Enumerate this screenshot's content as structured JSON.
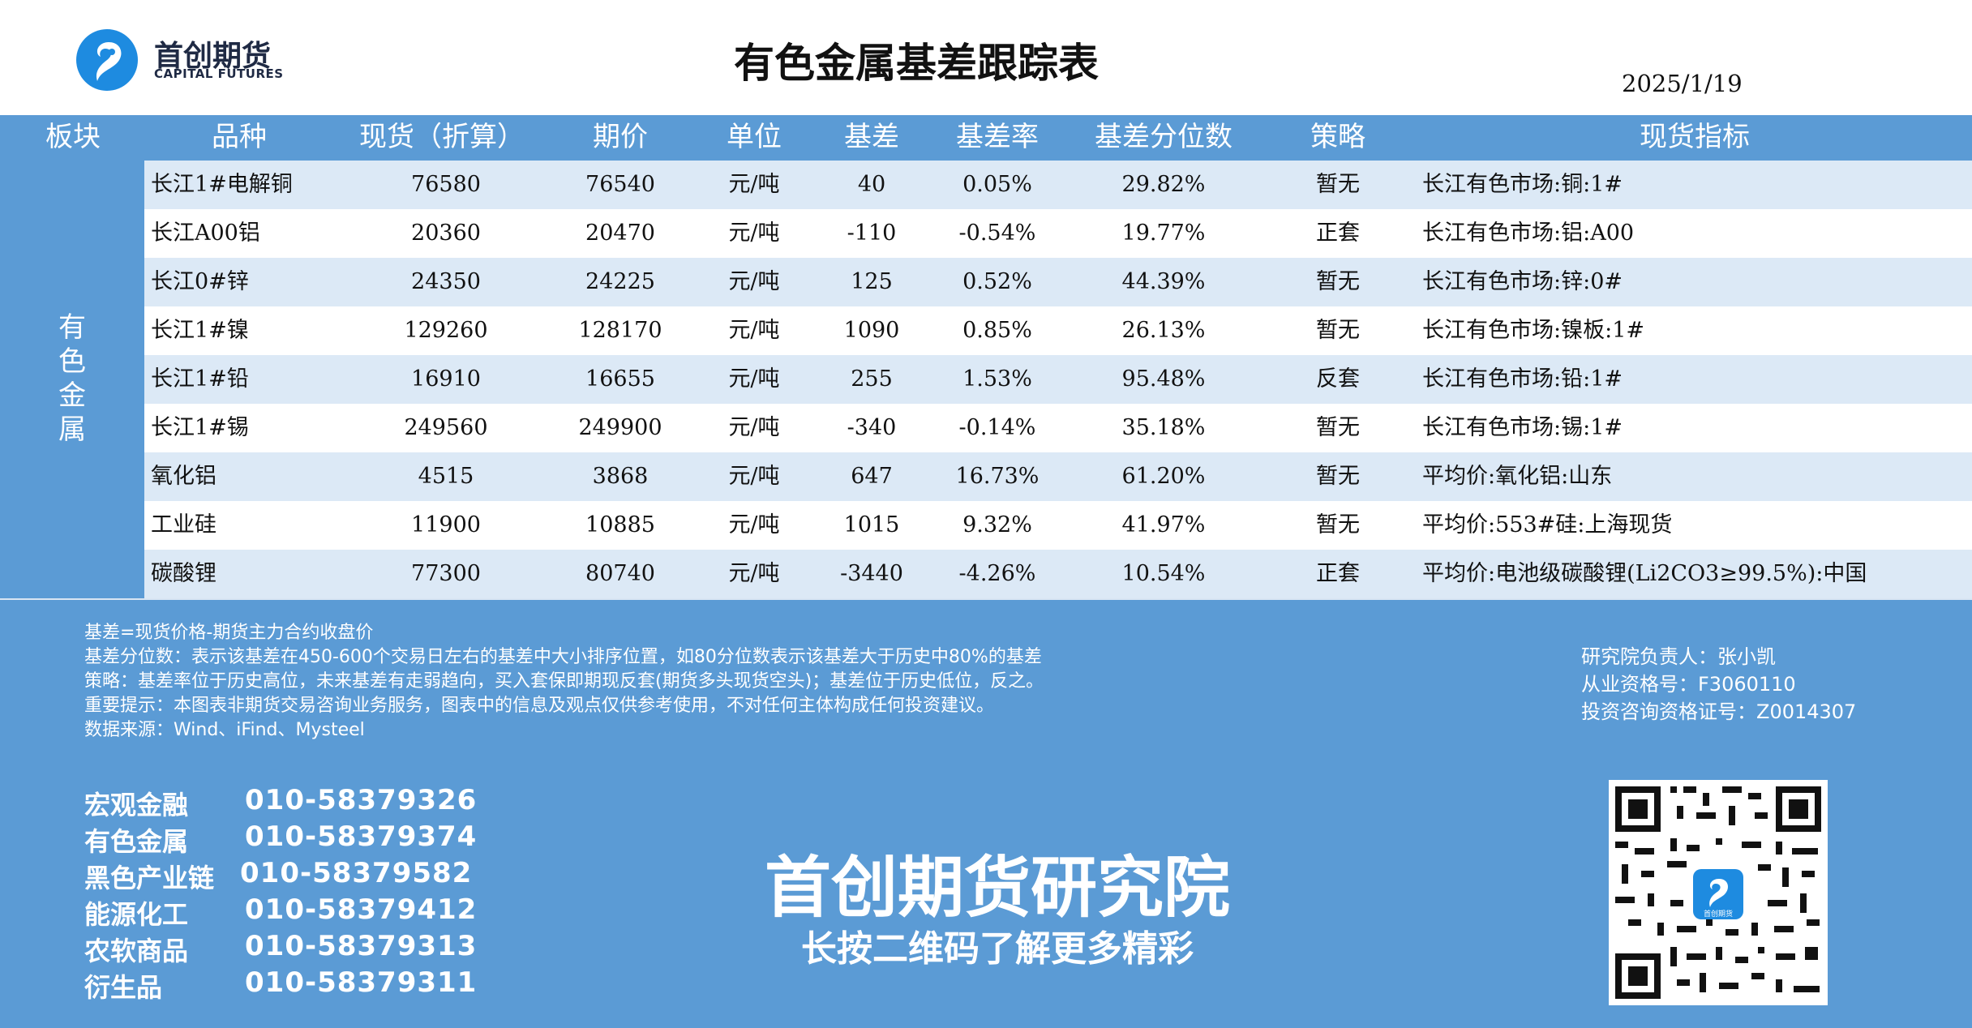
{
  "header": {
    "logo_cn": "首创期货",
    "logo_en": "CAPITAL FUTURES",
    "title": "有色金属基差跟踪表",
    "date": "2025/1/19"
  },
  "table": {
    "columns": [
      "板块",
      "品种",
      "现货（折算）",
      "期价",
      "单位",
      "基差",
      "基差率",
      "基差分位数",
      "策略",
      "现货指标"
    ],
    "sector": "有色金属",
    "rows": [
      {
        "name": "长江1#电解铜",
        "spot": "76580",
        "futures": "76540",
        "unit": "元/吨",
        "basis": "40",
        "basis_rate": "0.05%",
        "percentile": "29.82%",
        "strategy": "暂无",
        "indicator": "长江有色市场:铜:1#"
      },
      {
        "name": "长江A00铝",
        "spot": "20360",
        "futures": "20470",
        "unit": "元/吨",
        "basis": "-110",
        "basis_rate": "-0.54%",
        "percentile": "19.77%",
        "strategy": "正套",
        "indicator": "长江有色市场:铝:A00"
      },
      {
        "name": "长江0#锌",
        "spot": "24350",
        "futures": "24225",
        "unit": "元/吨",
        "basis": "125",
        "basis_rate": "0.52%",
        "percentile": "44.39%",
        "strategy": "暂无",
        "indicator": "长江有色市场:锌:0#"
      },
      {
        "name": "长江1#镍",
        "spot": "129260",
        "futures": "128170",
        "unit": "元/吨",
        "basis": "1090",
        "basis_rate": "0.85%",
        "percentile": "26.13%",
        "strategy": "暂无",
        "indicator": "长江有色市场:镍板:1#"
      },
      {
        "name": "长江1#铅",
        "spot": "16910",
        "futures": "16655",
        "unit": "元/吨",
        "basis": "255",
        "basis_rate": "1.53%",
        "percentile": "95.48%",
        "strategy": "反套",
        "indicator": "长江有色市场:铅:1#"
      },
      {
        "name": "长江1#锡",
        "spot": "249560",
        "futures": "249900",
        "unit": "元/吨",
        "basis": "-340",
        "basis_rate": "-0.14%",
        "percentile": "35.18%",
        "strategy": "暂无",
        "indicator": "长江有色市场:锡:1#"
      },
      {
        "name": "氧化铝",
        "spot": "4515",
        "futures": "3868",
        "unit": "元/吨",
        "basis": "647",
        "basis_rate": "16.73%",
        "percentile": "61.20%",
        "strategy": "暂无",
        "indicator": "平均价:氧化铝:山东"
      },
      {
        "name": "工业硅",
        "spot": "11900",
        "futures": "10885",
        "unit": "元/吨",
        "basis": "1015",
        "basis_rate": "9.32%",
        "percentile": "41.97%",
        "strategy": "暂无",
        "indicator": "平均价:553#硅:上海现货"
      },
      {
        "name": "碳酸锂",
        "spot": "77300",
        "futures": "80740",
        "unit": "元/吨",
        "basis": "-3440",
        "basis_rate": "-4.26%",
        "percentile": "10.54%",
        "strategy": "正套",
        "indicator": "平均价:电池级碳酸锂(Li2CO3≥99.5%):中国"
      }
    ]
  },
  "notes": [
    "基差=现货价格-期货主力合约收盘价",
    "基差分位数：表示该基差在450-600个交易日左右的基差中大小排序位置，如80分位数表示该基差大于历史中80%的基差",
    "策略：基差率位于历史高位，未来基差有走弱趋向，买入套保即期现反套(期货多头现货空头)；基差位于历史低位，反之。",
    "重要提示：本图表非期货交易咨询业务服务，图表中的信息及观点仅供参考使用，不对任何主体构成任何投资建议。",
    "数据来源：Wind、iFind、Mysteel"
  ],
  "analyst": [
    "研究院负责人：张小凯",
    "从业资格号：F3060110",
    "投资咨询资格证号：Z0014307"
  ],
  "footer": {
    "contacts": [
      {
        "name": "宏观金融",
        "phone": "010-58379326"
      },
      {
        "name": "有色金属",
        "phone": "010-58379374"
      },
      {
        "name": "黑色产业链",
        "phone": "010-58379582"
      },
      {
        "name": "能源化工",
        "phone": "010-58379412"
      },
      {
        "name": "农软商品",
        "phone": "010-58379313"
      },
      {
        "name": "衍生品",
        "phone": "010-58379311"
      }
    ],
    "institute": "首创期货研究院",
    "slogan": "长按二维码了解更多精彩",
    "qr_badge": "首创期货"
  },
  "colors": {
    "brand_blue": "#5b9bd5",
    "stripe_light": "#dce9f6",
    "logo_blue": "#1e8be0"
  }
}
